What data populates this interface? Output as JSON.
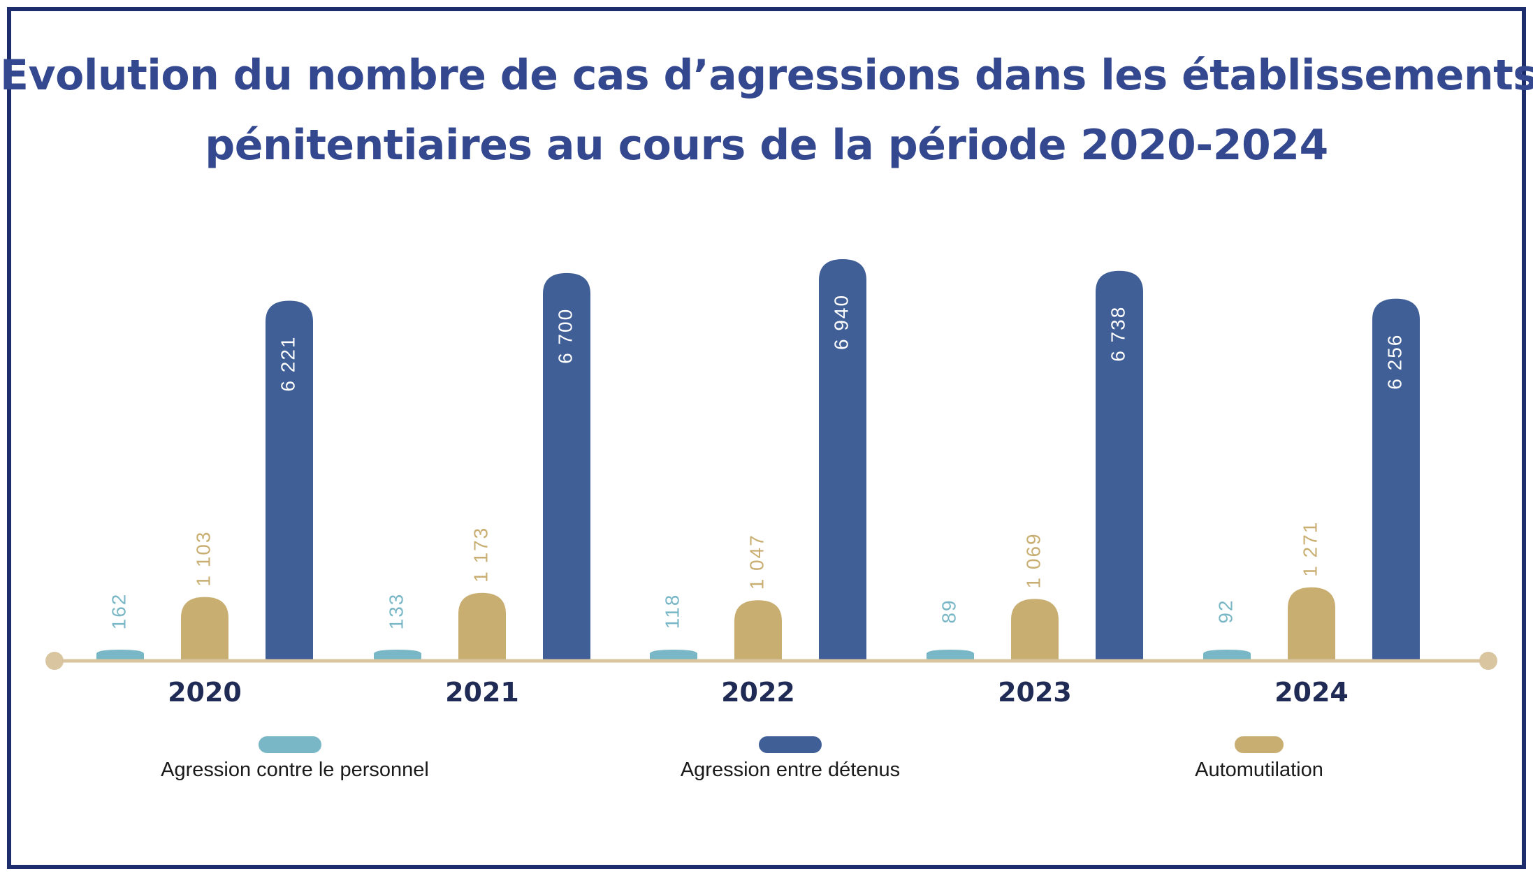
{
  "colors": {
    "frame": "#1e2d6b",
    "title": "#34488f",
    "personnel": "#7ab7c6",
    "detenus": "#405f97",
    "automutilation": "#c9ae72",
    "axis": "#d9c6a0"
  },
  "chart_data": {
    "type": "bar",
    "title": "Evolution du nombre de cas d’agressions dans les établissements pénitentiaires au cours de la période 2020-2024",
    "title_lines": [
      "Evolution du nombre de cas d’agressions dans les établissements",
      "pénitentiaires au cours de la période 2020-2024"
    ],
    "categories": [
      "2020",
      "2021",
      "2022",
      "2023",
      "2024"
    ],
    "series": [
      {
        "name": "Agression contre le personnel",
        "key": "personnel",
        "values": [
          162,
          133,
          118,
          89,
          92
        ],
        "labels": [
          "162",
          "133",
          "118",
          "89",
          "92"
        ]
      },
      {
        "name": "Automutilation",
        "key": "automutilation",
        "values": [
          1103,
          1173,
          1047,
          1069,
          1271
        ],
        "labels": [
          "1 103",
          "1 173",
          "1 047",
          "1 069",
          "1 271"
        ]
      },
      {
        "name": "Agression entre détenus",
        "key": "detenus",
        "values": [
          6221,
          6700,
          6940,
          6738,
          6256
        ],
        "labels": [
          "6 221",
          "6 700",
          "6 940",
          "6 738",
          "6 256"
        ]
      }
    ],
    "legend_order": [
      "personnel",
      "detenus",
      "automutilation"
    ],
    "xlabel": "",
    "ylabel": "",
    "ylim": [
      0,
      7000
    ],
    "grid": false,
    "legend_position": "bottom"
  }
}
